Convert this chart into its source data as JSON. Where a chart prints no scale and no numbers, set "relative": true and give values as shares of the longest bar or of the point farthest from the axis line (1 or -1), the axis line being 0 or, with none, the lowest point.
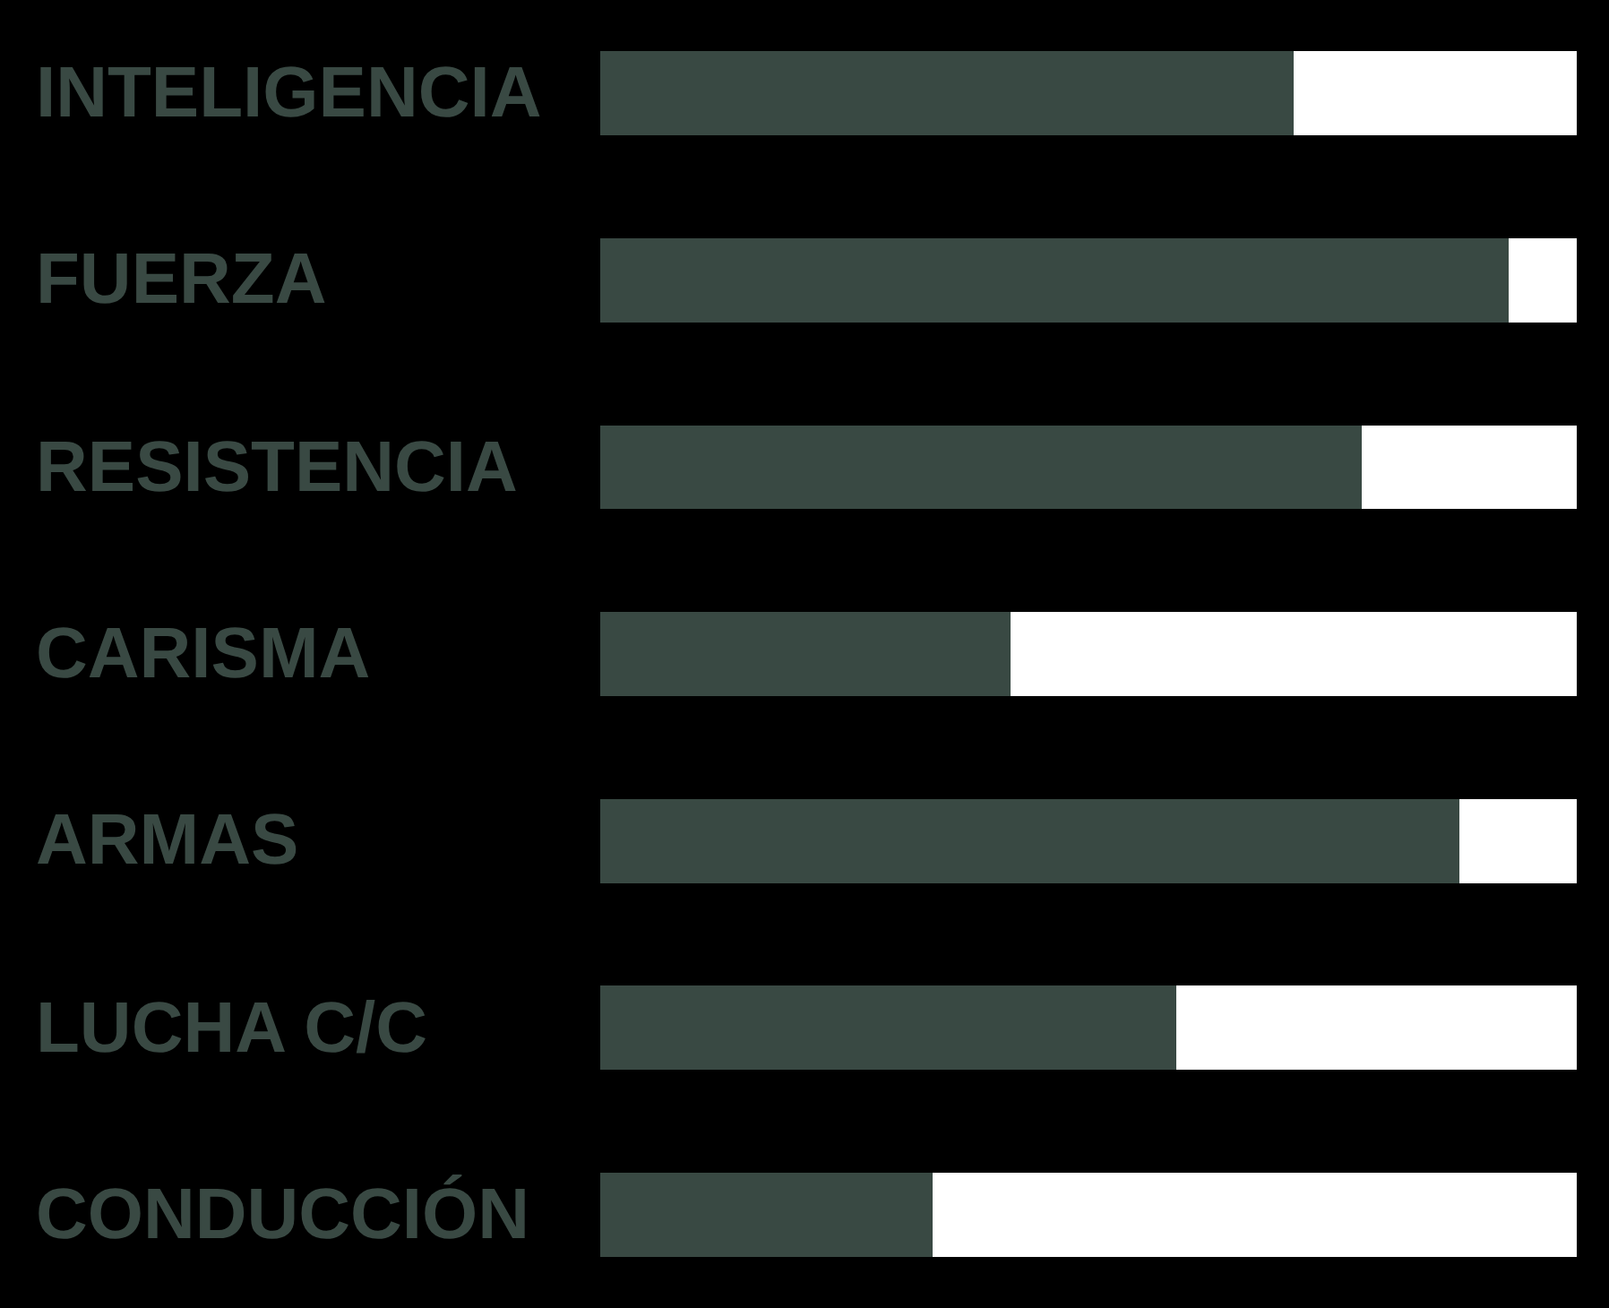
{
  "chart_data": {
    "type": "bar",
    "orientation": "horizontal",
    "stacked": true,
    "relative": true,
    "tick_labels": "y",
    "categories": [
      "INTELIGENCIA",
      "FUERZA",
      "RESISTENCIA",
      "CARISMA",
      "ARMAS",
      "LUCHA C/C",
      "CONDUCCIÓN"
    ],
    "series": [
      {
        "color": "#394943",
        "values": [
          0.71,
          0.93,
          0.78,
          0.42,
          0.88,
          0.59,
          0.34
        ]
      },
      {
        "color": "#ffffff",
        "values": [
          0.29,
          0.07,
          0.22,
          0.58,
          0.12,
          0.41,
          0.66
        ]
      }
    ]
  }
}
